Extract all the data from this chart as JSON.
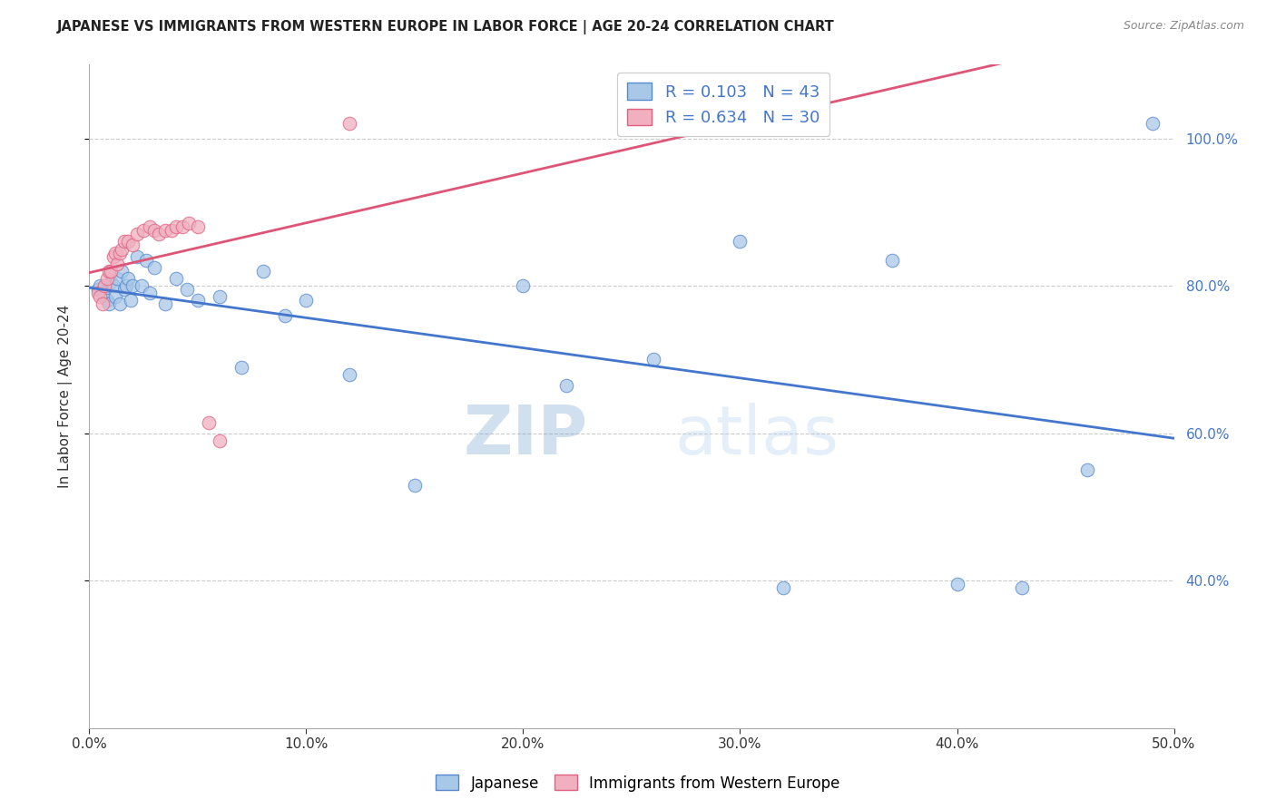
{
  "title": "JAPANESE VS IMMIGRANTS FROM WESTERN EUROPE IN LABOR FORCE | AGE 20-24 CORRELATION CHART",
  "source": "Source: ZipAtlas.com",
  "ylabel_label": "In Labor Force | Age 20-24",
  "watermark_zip": "ZIP",
  "watermark_atlas": "atlas",
  "xlim": [
    0.0,
    0.5
  ],
  "ylim": [
    0.2,
    1.1
  ],
  "legend_blue_r": "0.103",
  "legend_blue_n": "43",
  "legend_pink_r": "0.634",
  "legend_pink_n": "30",
  "blue_fill": "#a8c8e8",
  "blue_edge": "#5588cc",
  "pink_fill": "#f0b0c0",
  "pink_edge": "#e06080",
  "blue_line": "#4477cc",
  "pink_line": "#dd5577",
  "japanese_x": [
    0.004,
    0.005,
    0.006,
    0.007,
    0.008,
    0.009,
    0.01,
    0.011,
    0.012,
    0.013,
    0.014,
    0.015,
    0.016,
    0.017,
    0.018,
    0.019,
    0.02,
    0.022,
    0.024,
    0.026,
    0.028,
    0.03,
    0.035,
    0.04,
    0.045,
    0.05,
    0.06,
    0.07,
    0.08,
    0.09,
    0.1,
    0.12,
    0.15,
    0.2,
    0.22,
    0.26,
    0.3,
    0.32,
    0.37,
    0.4,
    0.43,
    0.46,
    0.49
  ],
  "japanese_y": [
    0.795,
    0.8,
    0.79,
    0.785,
    0.78,
    0.775,
    0.805,
    0.8,
    0.785,
    0.81,
    0.775,
    0.82,
    0.795,
    0.8,
    0.81,
    0.78,
    0.8,
    0.84,
    0.8,
    0.835,
    0.79,
    0.825,
    0.775,
    0.81,
    0.795,
    0.78,
    0.785,
    0.69,
    0.82,
    0.76,
    0.78,
    0.68,
    0.53,
    0.8,
    0.665,
    0.7,
    0.86,
    0.39,
    0.835,
    0.395,
    0.39,
    0.55,
    1.02
  ],
  "western_x": [
    0.004,
    0.005,
    0.006,
    0.007,
    0.008,
    0.009,
    0.01,
    0.011,
    0.012,
    0.013,
    0.014,
    0.015,
    0.016,
    0.018,
    0.02,
    0.022,
    0.025,
    0.028,
    0.03,
    0.032,
    0.035,
    0.038,
    0.04,
    0.043,
    0.046,
    0.05,
    0.055,
    0.06,
    0.12,
    0.3
  ],
  "western_y": [
    0.79,
    0.785,
    0.775,
    0.8,
    0.81,
    0.82,
    0.82,
    0.84,
    0.845,
    0.83,
    0.845,
    0.85,
    0.86,
    0.86,
    0.855,
    0.87,
    0.875,
    0.88,
    0.875,
    0.87,
    0.875,
    0.875,
    0.88,
    0.88,
    0.885,
    0.88,
    0.615,
    0.59,
    1.02,
    1.02
  ]
}
